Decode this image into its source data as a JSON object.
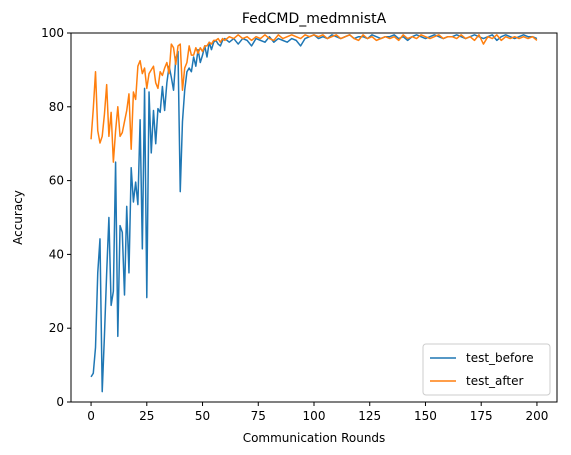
{
  "chart_data": {
    "type": "line",
    "title": "FedCMD_medmnistA",
    "xlabel": "Communication Rounds",
    "ylabel": "Accuracy",
    "xlim": [
      -9,
      209
    ],
    "ylim": [
      0,
      100
    ],
    "xticks": [
      0,
      25,
      50,
      75,
      100,
      125,
      150,
      175,
      200
    ],
    "yticks": [
      0,
      20,
      40,
      60,
      80,
      100
    ],
    "grid": false,
    "legend_position": "lower-right",
    "series": [
      {
        "name": "test_before",
        "color": "#1f77b4",
        "x": [
          0,
          1,
          2,
          3,
          4,
          5,
          6,
          7,
          8,
          9,
          10,
          11,
          12,
          13,
          14,
          15,
          16,
          17,
          18,
          19,
          20,
          21,
          22,
          23,
          24,
          25,
          26,
          27,
          28,
          29,
          30,
          31,
          32,
          33,
          34,
          35,
          36,
          37,
          38,
          39,
          40,
          41,
          42,
          43,
          44,
          45,
          46,
          47,
          48,
          49,
          50,
          51,
          52,
          53,
          54,
          55,
          56,
          57,
          58,
          59,
          60,
          62,
          64,
          66,
          68,
          70,
          72,
          74,
          76,
          78,
          80,
          82,
          84,
          86,
          88,
          90,
          92,
          94,
          96,
          98,
          100,
          102,
          104,
          106,
          108,
          110,
          112,
          114,
          116,
          118,
          120,
          122,
          124,
          126,
          128,
          130,
          132,
          134,
          136,
          138,
          140,
          142,
          144,
          146,
          148,
          150,
          152,
          154,
          156,
          158,
          160,
          162,
          164,
          166,
          168,
          170,
          172,
          174,
          176,
          178,
          180,
          182,
          184,
          186,
          188,
          190,
          192,
          194,
          196,
          198,
          200
        ],
        "values": [
          6.8,
          7.8,
          14.8,
          35.0,
          44.2,
          2.8,
          18.0,
          35.0,
          50.0,
          26.2,
          30.0,
          65.0,
          17.8,
          47.8,
          46.0,
          29.0,
          53.0,
          35.0,
          63.5,
          54.2,
          59.6,
          53.5,
          76.5,
          41.5,
          85.0,
          28.3,
          84.0,
          67.5,
          79.0,
          70.0,
          79.5,
          78.5,
          85.5,
          79.0,
          86.5,
          91.0,
          88.0,
          84.5,
          93.0,
          95.0,
          57.0,
          76.0,
          84.5,
          89.5,
          90.5,
          89.5,
          93.5,
          91.0,
          95.5,
          92.0,
          94.0,
          96.5,
          93.5,
          97.5,
          95.5,
          97.5,
          98.0,
          97.0,
          96.5,
          98.0,
          98.5,
          97.5,
          98.5,
          97.0,
          98.5,
          98.0,
          96.5,
          98.5,
          98.0,
          97.5,
          99.0,
          97.5,
          98.5,
          98.0,
          97.5,
          98.5,
          98.0,
          96.5,
          98.5,
          99.0,
          99.5,
          98.5,
          99.0,
          98.5,
          99.5,
          99.0,
          98.5,
          99.0,
          99.5,
          98.5,
          99.0,
          99.0,
          98.5,
          99.5,
          99.0,
          98.5,
          99.0,
          99.0,
          99.5,
          98.5,
          99.0,
          98.0,
          99.0,
          99.5,
          99.0,
          98.5,
          99.0,
          99.5,
          99.0,
          98.5,
          99.0,
          99.0,
          99.5,
          99.0,
          98.5,
          99.0,
          99.5,
          99.0,
          98.5,
          99.0,
          99.5,
          98.0,
          99.0,
          99.5,
          99.0,
          98.5,
          99.0,
          99.5,
          99.0,
          99.0,
          98.5
        ]
      },
      {
        "name": "test_after",
        "color": "#ff7f0e",
        "x": [
          0,
          1,
          2,
          3,
          4,
          5,
          6,
          7,
          8,
          9,
          10,
          11,
          12,
          13,
          14,
          15,
          16,
          17,
          18,
          19,
          20,
          21,
          22,
          23,
          24,
          25,
          26,
          27,
          28,
          29,
          30,
          31,
          32,
          33,
          34,
          35,
          36,
          37,
          38,
          39,
          40,
          41,
          42,
          43,
          44,
          45,
          46,
          47,
          48,
          49,
          50,
          51,
          52,
          53,
          54,
          55,
          56,
          57,
          58,
          59,
          60,
          62,
          64,
          66,
          68,
          70,
          72,
          74,
          76,
          78,
          80,
          82,
          84,
          86,
          88,
          90,
          92,
          94,
          96,
          98,
          100,
          102,
          104,
          106,
          108,
          110,
          112,
          114,
          116,
          118,
          120,
          122,
          124,
          126,
          128,
          130,
          132,
          134,
          136,
          138,
          140,
          142,
          144,
          146,
          148,
          150,
          152,
          154,
          156,
          158,
          160,
          162,
          164,
          166,
          168,
          170,
          172,
          174,
          176,
          178,
          180,
          182,
          184,
          186,
          188,
          190,
          192,
          194,
          196,
          198,
          200
        ],
        "values": [
          71.2,
          79.5,
          89.5,
          73.5,
          70.2,
          72.0,
          78.0,
          86.0,
          72.0,
          78.5,
          65.0,
          73.5,
          80.0,
          72.0,
          73.0,
          76.0,
          79.0,
          83.5,
          68.5,
          84.0,
          82.0,
          91.0,
          92.5,
          89.0,
          90.5,
          85.0,
          89.0,
          90.0,
          91.0,
          86.5,
          85.0,
          89.5,
          88.5,
          90.5,
          92.0,
          89.0,
          97.0,
          96.0,
          91.5,
          96.5,
          97.0,
          84.5,
          90.5,
          92.0,
          96.5,
          94.0,
          94.0,
          96.0,
          94.5,
          96.0,
          95.0,
          96.5,
          96.5,
          97.5,
          97.0,
          98.0,
          98.0,
          98.5,
          97.5,
          98.5,
          98.0,
          99.0,
          98.5,
          99.5,
          98.5,
          99.0,
          98.0,
          99.0,
          98.5,
          99.5,
          98.5,
          98.0,
          99.5,
          98.5,
          99.0,
          99.5,
          99.0,
          98.5,
          99.5,
          99.0,
          99.5,
          99.0,
          99.5,
          98.5,
          99.0,
          99.5,
          98.5,
          99.0,
          99.5,
          98.5,
          98.0,
          99.5,
          98.5,
          99.0,
          98.0,
          98.5,
          99.0,
          98.5,
          99.0,
          98.0,
          99.5,
          98.5,
          99.0,
          98.5,
          99.5,
          99.0,
          98.5,
          99.0,
          99.5,
          98.5,
          99.0,
          99.0,
          98.5,
          99.5,
          98.5,
          99.0,
          98.0,
          99.5,
          97.0,
          99.0,
          98.5,
          99.5,
          98.0,
          99.0,
          98.5,
          99.0,
          98.5,
          99.0,
          98.5,
          99.0,
          98.0
        ]
      }
    ]
  }
}
